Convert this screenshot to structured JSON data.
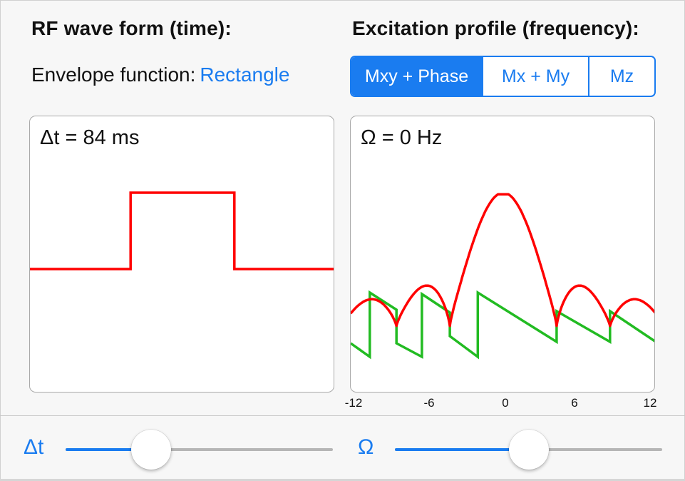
{
  "left_section": {
    "title": "RF wave form (time):",
    "envelope_label": "Envelope function:",
    "envelope_value": "Rectangle",
    "plot_label": "Δt = 84 ms"
  },
  "right_section": {
    "title": "Excitation profile (frequency):",
    "tabs": [
      {
        "label": "Mxy + Phase",
        "selected": true
      },
      {
        "label": "Mx + My",
        "selected": false
      },
      {
        "label": "Mz",
        "selected": false
      }
    ],
    "plot_label": "Ω = 0 Hz",
    "x_ticks": [
      "-12",
      "-6",
      "0",
      "6",
      "12"
    ]
  },
  "sliders": {
    "dt": {
      "label": "Δt",
      "value_fraction": 0.32
    },
    "omega": {
      "label": "Ω",
      "value_fraction": 0.5
    }
  },
  "colors": {
    "accent": "#1a7cf0",
    "magnitude_curve": "#ff0000",
    "phase_curve": "#22bb22",
    "waveform": "#ff0000"
  },
  "chart_data": [
    {
      "type": "line",
      "title": "Δt = 84 ms",
      "series": [
        {
          "x": [
            0,
            0.33,
            0.33,
            0.67,
            0.67,
            1.0
          ],
          "values": [
            0,
            0,
            1,
            1,
            0,
            0
          ]
        }
      ],
      "ylim": [
        -1.2,
        1.2
      ]
    },
    {
      "type": "line",
      "title": "Ω = 0 Hz",
      "xlim": [
        -12,
        12
      ],
      "x_ticks": [
        -12,
        -6,
        0,
        6,
        12
      ]
    }
  ]
}
